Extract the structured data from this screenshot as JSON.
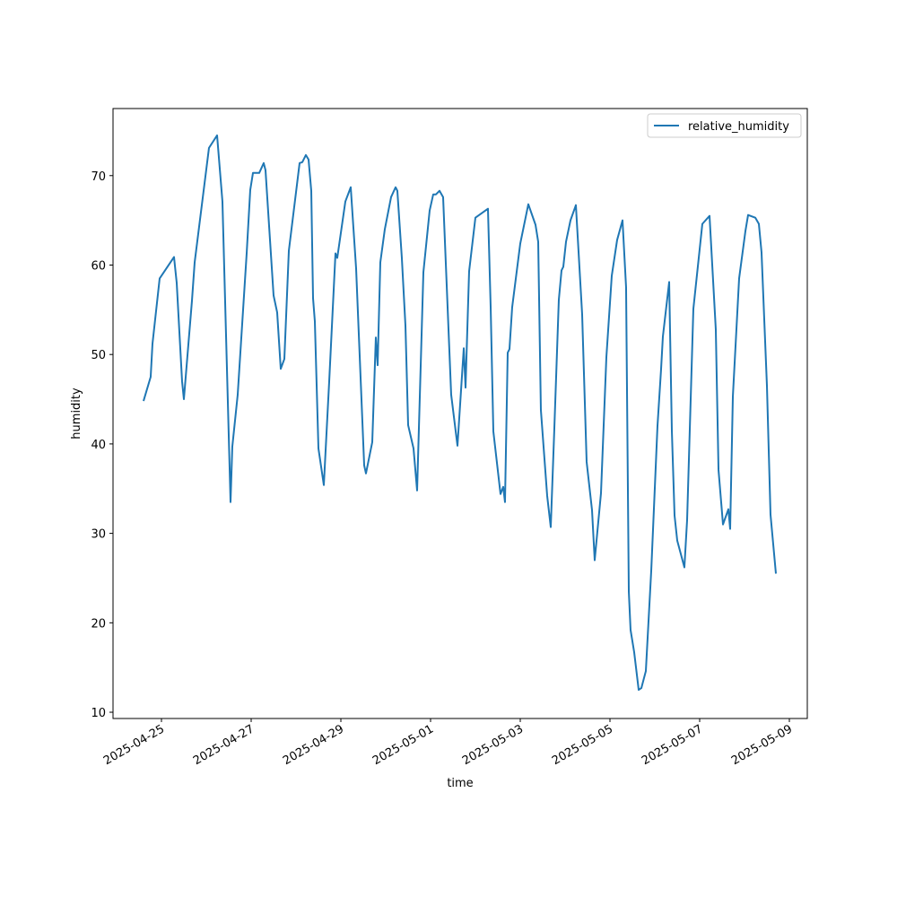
{
  "chart_data": {
    "type": "line",
    "xlabel": "time",
    "ylabel": "humidity",
    "x": [
      "2025-04-24T14:24",
      "2025-04-24T18:14",
      "2025-04-24T19:12",
      "2025-04-24T23:02",
      "2025-04-25T06:43",
      "2025-04-25T08:10",
      "2025-04-25T11:02",
      "2025-04-25T12:00",
      "2025-04-25T16:19",
      "2025-04-25T17:46",
      "2025-04-26T01:26",
      "2025-04-26T05:46",
      "2025-04-26T08:38",
      "2025-04-26T12:58",
      "2025-04-26T13:55",
      "2025-04-26T16:48",
      "2025-04-26T21:36",
      "2025-04-26T23:31",
      "2025-04-27T00:58",
      "2025-04-27T04:19",
      "2025-04-27T06:43",
      "2025-04-27T07:41",
      "2025-04-27T12:00",
      "2025-04-27T13:55",
      "2025-04-27T15:50",
      "2025-04-27T17:46",
      "2025-04-27T20:10",
      "2025-04-28T01:55",
      "2025-04-28T03:22",
      "2025-04-28T05:17",
      "2025-04-28T06:43",
      "2025-04-28T08:10",
      "2025-04-28T09:07",
      "2025-04-28T10:05",
      "2025-04-28T12:00",
      "2025-04-28T14:53",
      "2025-04-28T17:46",
      "2025-04-28T21:07",
      "2025-04-28T22:05",
      "2025-04-29T02:24",
      "2025-04-29T05:17",
      "2025-04-29T08:10",
      "2025-04-29T12:29",
      "2025-04-29T13:26",
      "2025-04-29T16:48",
      "2025-04-29T18:43",
      "2025-04-29T19:41",
      "2025-04-29T21:07",
      "2025-04-29T23:31",
      "2025-04-30T02:53",
      "2025-04-30T05:17",
      "2025-04-30T06:14",
      "2025-04-30T08:38",
      "2025-04-30T10:34",
      "2025-04-30T12:00",
      "2025-04-30T14:53",
      "2025-04-30T16:48",
      "2025-04-30T20:10",
      "2025-04-30T23:31",
      "2025-05-01T01:26",
      "2025-05-01T02:53",
      "2025-05-01T04:48",
      "2025-05-01T06:43",
      "2025-05-01T11:02",
      "2025-05-01T14:24",
      "2025-05-01T17:46",
      "2025-05-01T18:43",
      "2025-05-01T20:38",
      "2025-05-02T00:00",
      "2025-05-02T06:43",
      "2025-05-02T08:10",
      "2025-05-02T09:36",
      "2025-05-02T13:26",
      "2025-05-02T14:53",
      "2025-05-02T15:50",
      "2025-05-02T17:17",
      "2025-05-02T18:14",
      "2025-05-02T19:41",
      "2025-05-03T00:00",
      "2025-05-03T04:19",
      "2025-05-03T08:10",
      "2025-05-03T09:36",
      "2025-05-03T11:02",
      "2025-05-03T14:24",
      "2025-05-03T16:19",
      "2025-05-03T18:14",
      "2025-05-03T20:38",
      "2025-05-03T22:05",
      "2025-05-03T23:02",
      "2025-05-04T00:29",
      "2025-05-04T02:53",
      "2025-05-04T05:46",
      "2025-05-04T09:07",
      "2025-05-04T11:31",
      "2025-05-04T14:24",
      "2025-05-04T15:50",
      "2025-05-04T19:12",
      "2025-05-04T22:05",
      "2025-05-05T00:58",
      "2025-05-05T03:50",
      "2025-05-05T06:43",
      "2025-05-05T08:38",
      "2025-05-05T10:05",
      "2025-05-05T11:02",
      "2025-05-05T12:58",
      "2025-05-05T15:22",
      "2025-05-05T16:48",
      "2025-05-05T19:12",
      "2025-05-05T22:05",
      "2025-05-06T01:26",
      "2025-05-06T03:22",
      "2025-05-06T04:19",
      "2025-05-06T07:41",
      "2025-05-06T09:07",
      "2025-05-06T10:34",
      "2025-05-06T12:00",
      "2025-05-06T15:50",
      "2025-05-06T17:17",
      "2025-05-06T20:38",
      "2025-05-07T01:26",
      "2025-05-07T05:17",
      "2025-05-07T08:38",
      "2025-05-07T10:05",
      "2025-05-07T12:29",
      "2025-05-07T15:22",
      "2025-05-07T16:19",
      "2025-05-07T17:46",
      "2025-05-07T21:07",
      "2025-05-08T00:29",
      "2025-05-08T01:55",
      "2025-05-08T05:46",
      "2025-05-08T07:41",
      "2025-05-08T09:07",
      "2025-05-08T12:00",
      "2025-05-08T13:55",
      "2025-05-08T16:48"
    ],
    "series": [
      {
        "name": "relative_humidity",
        "color": "#1f77b4",
        "values": [
          44.8,
          47.5,
          51.2,
          58.5,
          60.9,
          58,
          47,
          45,
          56,
          60.3,
          73.1,
          74.5,
          67.1,
          33.5,
          39.7,
          45.5,
          61.3,
          68.4,
          70.3,
          70.3,
          71.4,
          70.6,
          56.6,
          54.7,
          48.4,
          49.5,
          61.6,
          71.4,
          71.5,
          72.3,
          71.8,
          68.3,
          56.3,
          53.7,
          39.5,
          35.4,
          47,
          61.3,
          60.8,
          67.1,
          68.7,
          59.6,
          37.6,
          36.7,
          40.2,
          51.9,
          48.8,
          60.3,
          64,
          67.6,
          68.7,
          68.3,
          60.8,
          53.2,
          42.1,
          39.5,
          34.8,
          59.2,
          66.1,
          67.9,
          67.9,
          68.3,
          67.6,
          45.5,
          39.8,
          50.7,
          46.3,
          59.3,
          65.3,
          66.3,
          55.3,
          41.4,
          34.4,
          35.2,
          33.5,
          50.2,
          50.6,
          55.3,
          62.4,
          66.8,
          64.5,
          62.6,
          43.8,
          34.2,
          30.7,
          41.7,
          56.1,
          59.4,
          59.8,
          62.6,
          65,
          66.7,
          54.5,
          38,
          32.6,
          27,
          34.5,
          49.7,
          58.8,
          62.8,
          65,
          57.5,
          23.5,
          19.2,
          16.7,
          12.5,
          12.7,
          14.6,
          25.8,
          42,
          48.4,
          52,
          58.1,
          41.5,
          32,
          29.2,
          26.2,
          31.5,
          55.1,
          64.6,
          65.5,
          52.8,
          37.1,
          31,
          32.7,
          30.5,
          45.3,
          58.5,
          63.8,
          65.6,
          65.3,
          64.6,
          61.4,
          46.5,
          32.1,
          25.5
        ]
      }
    ],
    "xlim": [
      "2025-04-23T22:05",
      "2025-05-09T09:36"
    ],
    "xticks": [
      "2025-04-25",
      "2025-04-27",
      "2025-04-29",
      "2025-05-01",
      "2025-05-03",
      "2025-05-05",
      "2025-05-07",
      "2025-05-09"
    ],
    "ylim": [
      9.3,
      77.5
    ],
    "yticks": [
      10,
      20,
      30,
      40,
      50,
      60,
      70
    ],
    "legend": "upper-right"
  }
}
